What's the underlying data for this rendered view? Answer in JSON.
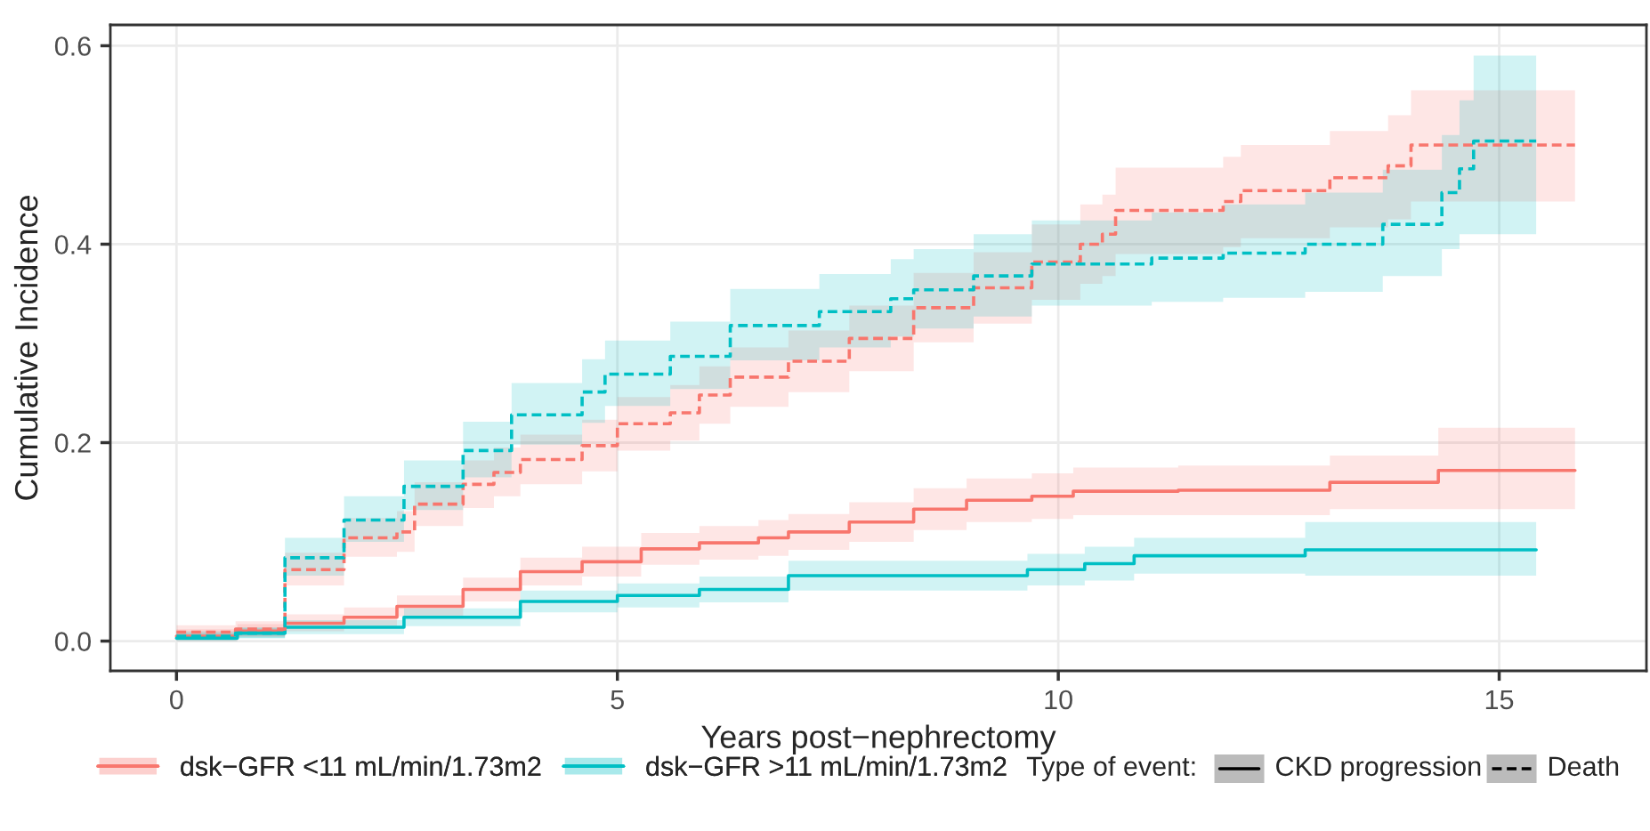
{
  "chart_data": {
    "type": "step",
    "xlabel": "Years post−nephrectomy",
    "ylabel": "Cumulative Incidence",
    "xlim": [
      -0.75,
      16.67
    ],
    "ylim": [
      -0.03,
      0.621
    ],
    "xticks": [
      0,
      5,
      10,
      15
    ],
    "yticks": [
      {
        "value": 0,
        "label": "0.0"
      },
      {
        "value": 0.2,
        "label": "0.2"
      },
      {
        "value": 0.4,
        "label": "0.4"
      },
      {
        "value": 0.6,
        "label": "0.6"
      }
    ],
    "grid": true,
    "legend": "bottom",
    "legend_title": "Type of event:",
    "annotations": [
      "CKD progression",
      "Death"
    ],
    "series": [
      {
        "name": "dsk−GFR <11 mL/min/1.73m2",
        "line_style": "solid",
        "color": "#f8766d",
        "x": [
          0,
          0.69,
          1.23,
          1.9,
          2.5,
          3.25,
          3.9,
          4.6,
          5.27,
          5.93,
          6.6,
          6.94,
          7.63,
          8.36,
          8.96,
          9.7,
          10.17,
          11.36,
          13.08,
          14.31,
          15.86
        ],
        "values": [
          0.005,
          0.01,
          0.018,
          0.024,
          0.035,
          0.052,
          0.07,
          0.08,
          0.093,
          0.099,
          0.104,
          0.11,
          0.12,
          0.133,
          0.142,
          0.146,
          0.151,
          0.152,
          0.16,
          0.172,
          0.172
        ],
        "lower": [
          0,
          0.004,
          0.01,
          0.015,
          0.025,
          0.04,
          0.056,
          0.065,
          0.077,
          0.082,
          0.086,
          0.092,
          0.1,
          0.112,
          0.12,
          0.123,
          0.127,
          0.127,
          0.133,
          0.133,
          0.133
        ],
        "upper": [
          0.012,
          0.017,
          0.027,
          0.034,
          0.046,
          0.064,
          0.084,
          0.095,
          0.109,
          0.116,
          0.122,
          0.128,
          0.14,
          0.154,
          0.164,
          0.169,
          0.175,
          0.177,
          0.187,
          0.215,
          0.215
        ]
      },
      {
        "name": "dsk−GFR >11 mL/min/1.73m2",
        "line_style": "solid",
        "color": "#00bfc4",
        "x": [
          0,
          0.69,
          1.23,
          2.58,
          3.9,
          5.0,
          5.93,
          6.94,
          9.65,
          10.3,
          10.86,
          12.8,
          15.42
        ],
        "values": [
          0.003,
          0.008,
          0.014,
          0.024,
          0.04,
          0.046,
          0.052,
          0.066,
          0.072,
          0.078,
          0.086,
          0.092,
          0.092
        ],
        "lower": [
          0,
          0.003,
          0.007,
          0.015,
          0.029,
          0.034,
          0.039,
          0.051,
          0.056,
          0.061,
          0.068,
          0.066,
          0.066
        ],
        "upper": [
          0.008,
          0.013,
          0.021,
          0.033,
          0.051,
          0.058,
          0.065,
          0.081,
          0.088,
          0.095,
          0.104,
          0.12,
          0.12
        ]
      },
      {
        "line_style": "dashed",
        "color": "#f8766d",
        "x": [
          0,
          0.67,
          1.23,
          1.9,
          2.5,
          2.7,
          3.25,
          3.6,
          3.9,
          4.6,
          5.0,
          5.6,
          5.93,
          6.28,
          6.94,
          7.63,
          8.36,
          9.04,
          9.7,
          10.25,
          10.5,
          10.65,
          11.87,
          12.07,
          13.08,
          13.74,
          14.0,
          15.86
        ],
        "values": [
          0.009,
          0.012,
          0.072,
          0.104,
          0.11,
          0.138,
          0.158,
          0.17,
          0.183,
          0.197,
          0.219,
          0.23,
          0.248,
          0.266,
          0.282,
          0.305,
          0.336,
          0.356,
          0.382,
          0.4,
          0.41,
          0.434,
          0.443,
          0.454,
          0.467,
          0.479,
          0.5,
          0.5
        ],
        "lower": [
          0.003,
          0.005,
          0.056,
          0.085,
          0.09,
          0.116,
          0.134,
          0.146,
          0.158,
          0.171,
          0.192,
          0.202,
          0.219,
          0.236,
          0.251,
          0.272,
          0.301,
          0.32,
          0.344,
          0.36,
          0.368,
          0.39,
          0.397,
          0.406,
          0.417,
          0.425,
          0.443,
          0.443
        ],
        "upper": [
          0.016,
          0.02,
          0.089,
          0.124,
          0.131,
          0.16,
          0.182,
          0.195,
          0.208,
          0.223,
          0.246,
          0.258,
          0.277,
          0.296,
          0.313,
          0.338,
          0.371,
          0.392,
          0.42,
          0.44,
          0.45,
          0.477,
          0.488,
          0.5,
          0.514,
          0.53,
          0.555,
          0.555
        ]
      },
      {
        "line_style": "dashed",
        "color": "#00bfc4",
        "x": [
          0,
          0.67,
          1.23,
          1.9,
          2.58,
          3.25,
          3.8,
          4.6,
          4.86,
          5.6,
          6.28,
          7.29,
          8.1,
          8.36,
          9.04,
          9.7,
          11.06,
          11.87,
          12.8,
          13.68,
          14.35,
          14.55,
          14.71,
          15.42
        ],
        "values": [
          0.005,
          0.008,
          0.084,
          0.122,
          0.156,
          0.192,
          0.228,
          0.251,
          0.269,
          0.287,
          0.318,
          0.332,
          0.345,
          0.354,
          0.368,
          0.38,
          0.386,
          0.391,
          0.4,
          0.42,
          0.452,
          0.476,
          0.504,
          0.504
        ],
        "lower": [
          0.001,
          0.003,
          0.066,
          0.1,
          0.132,
          0.165,
          0.198,
          0.22,
          0.237,
          0.254,
          0.283,
          0.296,
          0.307,
          0.315,
          0.327,
          0.338,
          0.342,
          0.346,
          0.352,
          0.368,
          0.395,
          0.41,
          0.41,
          0.41
        ],
        "upper": [
          0.01,
          0.014,
          0.104,
          0.146,
          0.182,
          0.221,
          0.26,
          0.284,
          0.303,
          0.322,
          0.355,
          0.37,
          0.385,
          0.395,
          0.41,
          0.424,
          0.432,
          0.44,
          0.452,
          0.475,
          0.51,
          0.545,
          0.59,
          0.59
        ]
      }
    ]
  }
}
